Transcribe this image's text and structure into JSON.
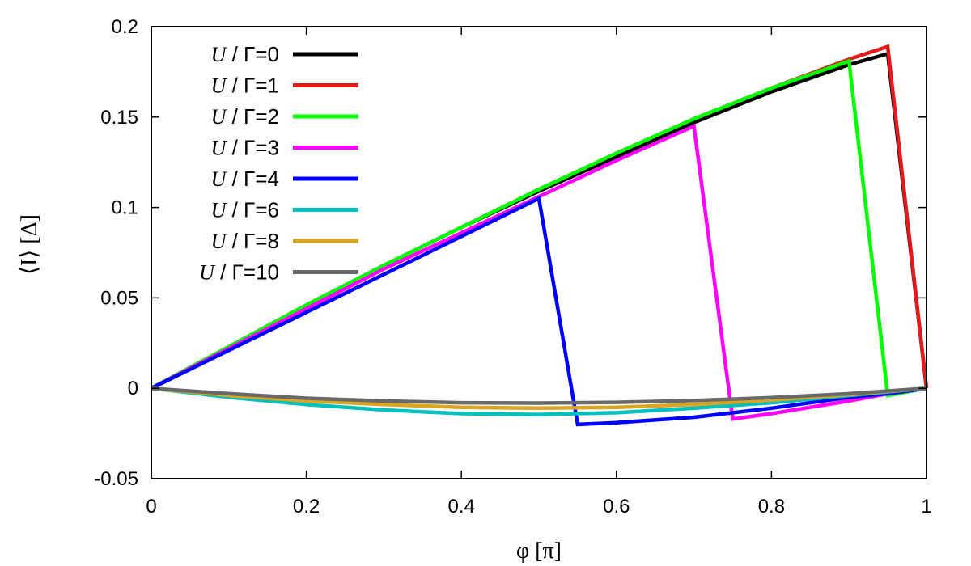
{
  "chart_data": {
    "type": "line",
    "xlabel": "φ [π]",
    "ylabel": "⟨I⟩ [Δ]",
    "xlim": [
      0,
      1
    ],
    "ylim": [
      -0.05,
      0.2
    ],
    "xticks": [
      0,
      0.2,
      0.4,
      0.6,
      0.8,
      1
    ],
    "xtick_labels": [
      "0",
      "0.2",
      "0.4",
      "0.6",
      "0.8",
      "1"
    ],
    "yticks": [
      -0.05,
      0,
      0.05,
      0.1,
      0.15,
      0.2
    ],
    "ytick_labels": [
      "-0.05",
      "0",
      "0.05",
      "0.1",
      "0.15",
      "0.2"
    ],
    "grid": false,
    "legend_position": "top-left",
    "series": [
      {
        "name": "U / Γ=0",
        "color": "#000000",
        "x": [
          0,
          0.1,
          0.2,
          0.3,
          0.4,
          0.5,
          0.6,
          0.7,
          0.8,
          0.9,
          0.95,
          1
        ],
        "y": [
          0,
          0.023,
          0.046,
          0.068,
          0.089,
          0.109,
          0.128,
          0.147,
          0.164,
          0.179,
          0.185,
          0
        ]
      },
      {
        "name": "U / Γ=1",
        "color": "#e41a1c",
        "x": [
          0,
          0.1,
          0.2,
          0.3,
          0.4,
          0.5,
          0.6,
          0.7,
          0.8,
          0.9,
          0.95,
          1
        ],
        "y": [
          0,
          0.023,
          0.046,
          0.068,
          0.089,
          0.11,
          0.13,
          0.149,
          0.166,
          0.182,
          0.189,
          0
        ]
      },
      {
        "name": "U / Γ=2",
        "color": "#00ff00",
        "x": [
          0,
          0.1,
          0.2,
          0.3,
          0.4,
          0.5,
          0.6,
          0.7,
          0.8,
          0.9,
          0.95,
          1
        ],
        "y": [
          0,
          0.023,
          0.046,
          0.068,
          0.089,
          0.11,
          0.13,
          0.149,
          0.166,
          0.181,
          -0.004,
          0
        ]
      },
      {
        "name": "U / Γ=3",
        "color": "#ff00ff",
        "x": [
          0,
          0.1,
          0.2,
          0.3,
          0.4,
          0.5,
          0.6,
          0.7,
          0.75,
          0.8,
          0.9,
          0.95,
          1
        ],
        "y": [
          0,
          0.022,
          0.044,
          0.066,
          0.086,
          0.106,
          0.126,
          0.145,
          -0.017,
          -0.014,
          -0.007,
          -0.003,
          0
        ]
      },
      {
        "name": "U / Γ=4",
        "color": "#0000ff",
        "x": [
          0,
          0.1,
          0.2,
          0.3,
          0.4,
          0.5,
          0.55,
          0.6,
          0.7,
          0.8,
          0.9,
          0.95,
          1
        ],
        "y": [
          0,
          0.021,
          0.042,
          0.063,
          0.084,
          0.105,
          -0.02,
          -0.019,
          -0.016,
          -0.011,
          -0.005,
          -0.003,
          0
        ]
      },
      {
        "name": "U / Γ=6",
        "color": "#00bfbf",
        "x": [
          0,
          0.1,
          0.2,
          0.3,
          0.4,
          0.5,
          0.6,
          0.7,
          0.8,
          0.9,
          1
        ],
        "y": [
          0,
          -0.005,
          -0.009,
          -0.012,
          -0.014,
          -0.0145,
          -0.0135,
          -0.011,
          -0.008,
          -0.004,
          0
        ]
      },
      {
        "name": "U / Γ=8",
        "color": "#daa520",
        "x": [
          0,
          0.1,
          0.2,
          0.3,
          0.4,
          0.5,
          0.6,
          0.7,
          0.8,
          0.9,
          1
        ],
        "y": [
          0,
          -0.004,
          -0.007,
          -0.009,
          -0.0105,
          -0.011,
          -0.0105,
          -0.009,
          -0.0065,
          -0.0035,
          0
        ]
      },
      {
        "name": "U / Γ=10",
        "color": "#696969",
        "x": [
          0,
          0.1,
          0.2,
          0.3,
          0.4,
          0.5,
          0.6,
          0.7,
          0.8,
          0.9,
          1
        ],
        "y": [
          0,
          -0.003,
          -0.0055,
          -0.007,
          -0.008,
          -0.0082,
          -0.0078,
          -0.0068,
          -0.0052,
          -0.003,
          0
        ]
      }
    ]
  }
}
